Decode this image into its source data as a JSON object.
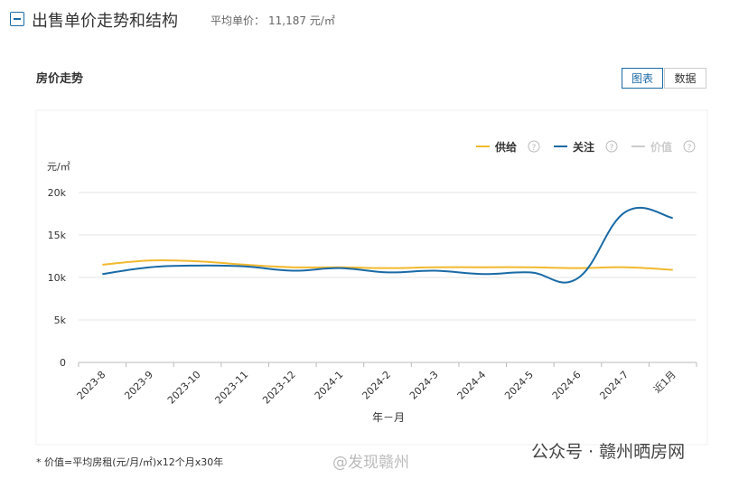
{
  "header": {
    "title": "出售单价走势和结构",
    "avg_label": "平均单价：",
    "avg_value": "11,187 元/㎡"
  },
  "card": {
    "title": "房价走势",
    "buttons": [
      "图表",
      "数据"
    ]
  },
  "chart_data": {
    "type": "line",
    "y_unit": "元/㎡",
    "x_label": "年－月",
    "categories": [
      "2023-8",
      "2023-9",
      "2023-10",
      "2023-11",
      "2023-12",
      "2024-1",
      "2024-2",
      "2024-3",
      "2024-4",
      "2024-5",
      "2024-6",
      "2024-7",
      "近1月"
    ],
    "series": [
      {
        "name": "供给",
        "color": "#f2b92f",
        "values": [
          11500,
          12000,
          11900,
          11500,
          11200,
          11200,
          11100,
          11200,
          11200,
          11200,
          11100,
          11200,
          10900
        ]
      },
      {
        "name": "关注",
        "color": "#1a6aa6",
        "values": [
          10400,
          11200,
          11400,
          11300,
          10800,
          11100,
          10600,
          10800,
          10400,
          10600,
          9900,
          17700,
          17000
        ]
      },
      {
        "name": "价值",
        "color": "#cccccc",
        "enabled": false,
        "values": [
          null,
          null,
          null,
          null,
          null,
          null,
          null,
          null,
          null,
          null,
          null,
          null,
          null
        ]
      }
    ],
    "ylim": [
      0,
      20000
    ],
    "yticks": [
      0,
      {
        "value": 5000,
        "label": "5k"
      },
      {
        "value": 10000,
        "label": "10k"
      },
      {
        "value": 15000,
        "label": "15k"
      },
      {
        "value": 20000,
        "label": "20k"
      }
    ],
    "grid": true,
    "legend": "top-right"
  },
  "footnote": "* 价值=平均房租(元/月/㎡)x12个月x30年",
  "watermark": {
    "left": "@发现赣州",
    "right": "公众号 · 赣州晒房网"
  }
}
